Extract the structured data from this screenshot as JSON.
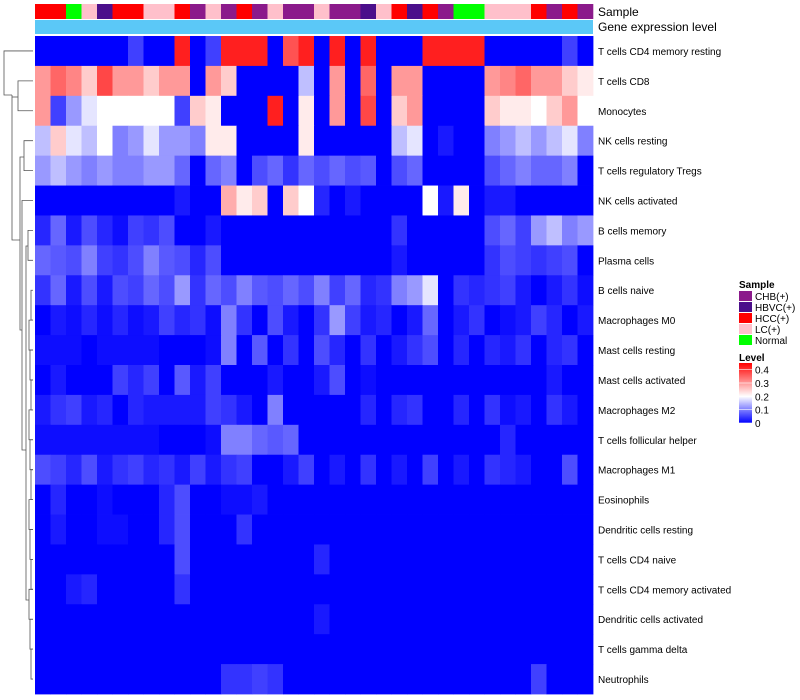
{
  "chart_data": {
    "type": "heatmap",
    "annotation_labels": [
      "Sample",
      "Gene expression level"
    ],
    "row_labels": [
      "T cells CD4 memory resting",
      "T cells CD8",
      "Monocytes",
      "NK cells resting",
      "T cells regulatory  Tregs",
      "NK cells activated",
      "B cells memory",
      "Plasma cells",
      "B cells naive",
      "Macrophages M0",
      "Mast cells resting",
      "Mast cells activated",
      "Macrophages M2",
      "T cells follicular helper",
      "Macrophages M1",
      "Eosinophils",
      "Dendritic cells resting",
      "T cells CD4 naive",
      "T cells CD4 memory activated",
      "Dendritic cells activated",
      "T cells gamma delta",
      "Neutrophils"
    ],
    "sample_groups": [
      "HCC(+)",
      "HCC(+)",
      "Normal",
      "LC(+)",
      "HBVC(+)",
      "HCC(+)",
      "HCC(+)",
      "LC(+)",
      "LC(+)",
      "HCC(+)",
      "CHB(+)",
      "LC(+)",
      "CHB(+)",
      "HCC(+)",
      "CHB(+)",
      "LC(+)",
      "CHB(+)",
      "CHB(+)",
      "LC(+)",
      "CHB(+)",
      "CHB(+)",
      "HBVC(+)",
      "LC(+)",
      "HCC(+)",
      "HBVC(+)",
      "HCC(+)",
      "CHB(+)",
      "Normal",
      "Normal",
      "LC(+)",
      "LC(+)",
      "LC(+)",
      "HCC(+)",
      "CHB(+)",
      "HCC(+)",
      "CHB(+)"
    ],
    "gene_expression_level_color": "#5bc8f7",
    "legend": {
      "sample_title": "Sample",
      "sample_items": [
        {
          "label": "CHB(+)",
          "color": "#8b1a8b"
        },
        {
          "label": "HBVC(+)",
          "color": "#4b0f8b"
        },
        {
          "label": "HCC(+)",
          "color": "#ff0000"
        },
        {
          "label": "LC(+)",
          "color": "#ffc0cb"
        },
        {
          "label": "Normal",
          "color": "#00ff00"
        }
      ],
      "level_title": "Level",
      "level_ticks": [
        "0.4",
        "0.3",
        "0.2",
        "0.1",
        "0"
      ],
      "level_range": [
        0,
        0.45
      ],
      "colors": [
        "#0000ff",
        "#ffffff",
        "#ff0000"
      ]
    },
    "values": [
      [
        0,
        0,
        0,
        0,
        0,
        0,
        0.05,
        0,
        0,
        0.42,
        0,
        0.05,
        0.42,
        0.42,
        0.42,
        0,
        0.37,
        0.42,
        0,
        0.42,
        0,
        0.42,
        0,
        0,
        0,
        0.42,
        0.42,
        0.42,
        0.42,
        0,
        0,
        0,
        0,
        0,
        0.05,
        0
      ],
      [
        0.3,
        0.35,
        0.32,
        0.25,
        0.38,
        0.3,
        0.3,
        0.25,
        0.3,
        0.3,
        0,
        0.3,
        0.25,
        0,
        0,
        0,
        0,
        0.15,
        0,
        0.3,
        0,
        0.35,
        0,
        0.3,
        0.3,
        0,
        0,
        0,
        0,
        0.3,
        0.32,
        0.35,
        0.3,
        0.3,
        0.25,
        0.22
      ],
      [
        0.3,
        0.05,
        0.12,
        0.18,
        0.2,
        0.2,
        0.2,
        0.2,
        0.2,
        0.05,
        0.25,
        0.22,
        0,
        0,
        0,
        0.42,
        0,
        0.22,
        0,
        0.3,
        0,
        0.38,
        0,
        0.25,
        0.3,
        0,
        0,
        0,
        0,
        0.25,
        0.22,
        0.22,
        0.2,
        0.25,
        0.3,
        0.2
      ],
      [
        0.15,
        0.25,
        0.18,
        0.15,
        0.2,
        0.1,
        0.12,
        0.18,
        0.12,
        0.12,
        0.1,
        0.22,
        0.22,
        0,
        0,
        0,
        0,
        0.22,
        0,
        0,
        0,
        0,
        0,
        0.15,
        0.18,
        0,
        0.02,
        0,
        0,
        0.1,
        0.12,
        0.15,
        0.12,
        0.15,
        0.18,
        0.1
      ],
      [
        0.12,
        0.15,
        0.12,
        0.1,
        0.12,
        0.1,
        0.1,
        0.12,
        0.12,
        0.08,
        0,
        0.08,
        0.1,
        0,
        0.06,
        0.08,
        0.04,
        0.08,
        0.06,
        0.08,
        0.06,
        0.07,
        0,
        0.06,
        0.08,
        0,
        0,
        0,
        0,
        0.06,
        0.08,
        0.1,
        0.08,
        0.08,
        0.1,
        0
      ],
      [
        0,
        0,
        0,
        0,
        0,
        0,
        0,
        0,
        0,
        0.02,
        0,
        0,
        0.28,
        0.22,
        0.25,
        0,
        0.25,
        0.2,
        0.03,
        0,
        0.02,
        0,
        0,
        0,
        0,
        0.2,
        0.02,
        0.22,
        0,
        0.02,
        0.02,
        0,
        0,
        0,
        0,
        0
      ],
      [
        0.03,
        0.08,
        0.02,
        0.06,
        0.03,
        0.01,
        0.05,
        0.04,
        0.06,
        0,
        0,
        0.02,
        0,
        0,
        0,
        0,
        0,
        0,
        0,
        0,
        0,
        0,
        0,
        0.04,
        0,
        0,
        0,
        0,
        0,
        0.06,
        0.08,
        0.05,
        0.12,
        0.15,
        0.1,
        0.12
      ],
      [
        0.08,
        0.07,
        0.06,
        0.1,
        0.05,
        0.04,
        0.06,
        0.1,
        0.07,
        0.06,
        0.03,
        0.06,
        0,
        0,
        0,
        0,
        0,
        0,
        0,
        0,
        0,
        0,
        0,
        0.02,
        0,
        0,
        0,
        0,
        0,
        0.04,
        0.06,
        0.05,
        0.04,
        0.05,
        0.06,
        0
      ],
      [
        0.04,
        0.08,
        0.02,
        0.06,
        0.02,
        0.06,
        0.05,
        0.08,
        0.06,
        0.12,
        0.04,
        0.08,
        0.06,
        0.1,
        0.07,
        0.06,
        0.08,
        0.06,
        0.1,
        0.05,
        0.08,
        0.03,
        0.04,
        0.1,
        0.12,
        0.18,
        0,
        0.04,
        0.03,
        0.04,
        0.05,
        0.02,
        0,
        0.02,
        0.04,
        0.01
      ],
      [
        0,
        0.02,
        0.01,
        0.03,
        0.01,
        0.03,
        0.01,
        0.02,
        0.05,
        0.03,
        0.04,
        0.01,
        0.1,
        0.04,
        0,
        0.06,
        0.02,
        0,
        0.04,
        0.12,
        0.05,
        0.02,
        0.03,
        0,
        0.02,
        0.08,
        0,
        0.02,
        0.04,
        0,
        0.01,
        0.02,
        0.05,
        0.03,
        0,
        0.02
      ],
      [
        0.01,
        0.01,
        0.01,
        0,
        0.01,
        0.01,
        0.01,
        0.01,
        0,
        0,
        0,
        0.01,
        0.1,
        0,
        0.07,
        0,
        0.04,
        0,
        0.06,
        0.03,
        0,
        0.04,
        0,
        0.02,
        0.04,
        0.06,
        0,
        0.03,
        0,
        0.03,
        0.02,
        0.04,
        0,
        0.03,
        0.04,
        0
      ],
      [
        0,
        0.02,
        0,
        0,
        0,
        0.05,
        0.03,
        0.05,
        0,
        0.07,
        0.02,
        0.05,
        0,
        0,
        0,
        0.02,
        0,
        0,
        0.02,
        0.06,
        0,
        0.01,
        0,
        0,
        0,
        0,
        0,
        0,
        0,
        0,
        0,
        0,
        0,
        0.02,
        0,
        0
      ],
      [
        0.02,
        0.04,
        0.05,
        0.02,
        0.03,
        0,
        0.03,
        0.02,
        0.02,
        0.02,
        0.02,
        0.05,
        0.04,
        0.02,
        0,
        0.1,
        0,
        0,
        0,
        0,
        0,
        0.03,
        0,
        0.03,
        0.04,
        0,
        0,
        0.03,
        0,
        0.04,
        0.01,
        0.02,
        0,
        0.04,
        0.02,
        0
      ],
      [
        0.01,
        0.01,
        0.01,
        0.01,
        0.01,
        0.01,
        0.01,
        0.01,
        0,
        0,
        0,
        0.01,
        0.1,
        0.1,
        0.08,
        0.07,
        0.08,
        0,
        0,
        0,
        0,
        0,
        0,
        0,
        0,
        0,
        0,
        0,
        0,
        0,
        0.03,
        0,
        0,
        0,
        0,
        0
      ],
      [
        0.06,
        0.05,
        0.03,
        0.06,
        0.02,
        0.04,
        0.05,
        0.03,
        0.04,
        0.02,
        0.05,
        0.02,
        0.04,
        0.05,
        0,
        0,
        0.02,
        0.05,
        0,
        0.02,
        0,
        0.04,
        0,
        0.02,
        0,
        0.05,
        0,
        0.02,
        0,
        0.04,
        0.03,
        0.02,
        0,
        0,
        0.06,
        0
      ],
      [
        0,
        0.03,
        0,
        0,
        0.01,
        0,
        0,
        0,
        0.03,
        0.06,
        0,
        0,
        0.01,
        0.01,
        0.02,
        0,
        0,
        0,
        0,
        0,
        0,
        0,
        0,
        0,
        0,
        0,
        0,
        0,
        0,
        0,
        0,
        0,
        0,
        0,
        0,
        0
      ],
      [
        0,
        0.02,
        0,
        0,
        0.01,
        0.01,
        0,
        0,
        0.03,
        0.06,
        0,
        0,
        0,
        0.04,
        0,
        0,
        0,
        0,
        0,
        0,
        0,
        0,
        0,
        0,
        0,
        0,
        0,
        0,
        0,
        0,
        0,
        0,
        0,
        0,
        0,
        0
      ],
      [
        0,
        0,
        0,
        0,
        0,
        0,
        0,
        0,
        0,
        0.06,
        0,
        0,
        0,
        0,
        0,
        0,
        0,
        0,
        0.03,
        0,
        0,
        0,
        0,
        0,
        0,
        0,
        0,
        0,
        0,
        0,
        0,
        0,
        0,
        0,
        0,
        0
      ],
      [
        0,
        0,
        0.02,
        0.03,
        0,
        0,
        0,
        0,
        0,
        0.04,
        0,
        0,
        0,
        0,
        0,
        0,
        0,
        0,
        0,
        0,
        0,
        0,
        0,
        0,
        0,
        0,
        0,
        0,
        0,
        0,
        0,
        0,
        0,
        0,
        0,
        0
      ],
      [
        0,
        0,
        0,
        0,
        0,
        0,
        0,
        0,
        0,
        0,
        0,
        0,
        0,
        0,
        0,
        0,
        0,
        0,
        0.02,
        0,
        0,
        0,
        0,
        0,
        0,
        0,
        0,
        0,
        0,
        0,
        0,
        0,
        0,
        0,
        0,
        0
      ],
      [
        0,
        0,
        0,
        0,
        0,
        0,
        0,
        0,
        0,
        0,
        0,
        0,
        0,
        0,
        0,
        0,
        0,
        0,
        0,
        0,
        0,
        0,
        0,
        0,
        0,
        0,
        0,
        0,
        0,
        0,
        0,
        0,
        0,
        0,
        0,
        0
      ],
      [
        0,
        0,
        0,
        0,
        0,
        0,
        0,
        0,
        0,
        0,
        0,
        0,
        0.04,
        0.04,
        0.05,
        0.04,
        0,
        0,
        0,
        0,
        0,
        0,
        0,
        0,
        0,
        0,
        0,
        0,
        0,
        0,
        0,
        0,
        0.05,
        0,
        0,
        0
      ]
    ]
  }
}
